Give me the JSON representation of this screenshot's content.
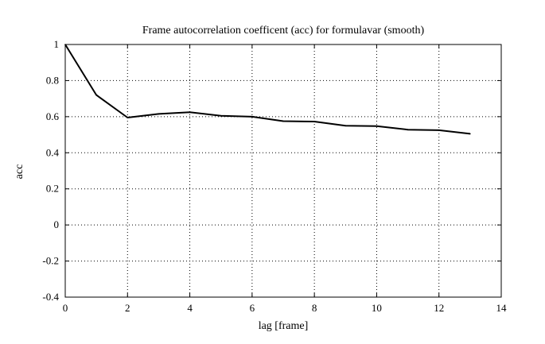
{
  "chart_data": {
    "type": "line",
    "title": "Frame autocorrelation coefficent (acc) for formulavar (smooth)",
    "xlabel": "lag [frame]",
    "ylabel": "acc",
    "xlim": [
      0,
      14
    ],
    "ylim": [
      -0.4,
      1
    ],
    "xticks": [
      "0",
      "2",
      "4",
      "6",
      "8",
      "10",
      "12",
      "14"
    ],
    "yticks": [
      "1",
      "0.8",
      "0.6",
      "0.4",
      "0.2",
      "0",
      "-0.2",
      "-0.4"
    ],
    "grid": true,
    "series": [
      {
        "x": [
          0,
          1,
          2,
          3,
          4,
          5,
          6,
          7,
          8,
          9,
          10,
          11,
          12,
          13
        ],
        "y": [
          1.0,
          0.72,
          0.595,
          0.615,
          0.625,
          0.605,
          0.6,
          0.575,
          0.573,
          0.55,
          0.548,
          0.528,
          0.525,
          0.505
        ],
        "color": "#000000"
      }
    ]
  }
}
